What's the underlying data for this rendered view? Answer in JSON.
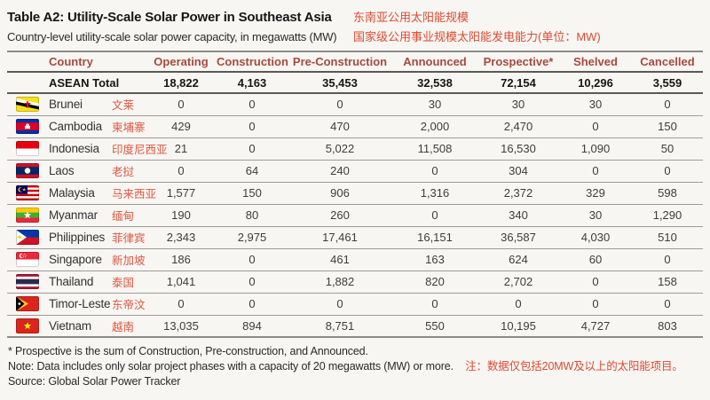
{
  "header": {
    "title_en": "Table A2: Utility-Scale Solar Power in Southeast Asia",
    "title_zh": "东南亚公用太阳能规模",
    "subtitle_en": "Country-level utility-scale solar power capacity, in megawatts (MW)",
    "subtitle_zh": "国家级公用事业规模太阳能发电能力(单位：MW)"
  },
  "table": {
    "columns": [
      "Country",
      "Operating",
      "Construction",
      "Pre-Construction",
      "Announced",
      "Prospective*",
      "Shelved",
      "Cancelled"
    ],
    "column_keys": [
      "operating",
      "construction",
      "pre-construction",
      "announced",
      "prospective",
      "shelved",
      "cancelled"
    ],
    "total_row": {
      "label": "ASEAN Total",
      "values": [
        "18,822",
        "4,163",
        "35,453",
        "32,538",
        "72,154",
        "10,296",
        "3,559"
      ]
    },
    "rows": [
      {
        "flag": "bn",
        "name": "Brunei",
        "name_zh": "文莱",
        "values": [
          "0",
          "0",
          "0",
          "30",
          "30",
          "30",
          "0"
        ]
      },
      {
        "flag": "kh",
        "name": "Cambodia",
        "name_zh": "柬埔寨",
        "values": [
          "429",
          "0",
          "470",
          "2,000",
          "2,470",
          "0",
          "150"
        ]
      },
      {
        "flag": "id",
        "name": "Indonesia",
        "name_zh": "印度尼西亚",
        "values": [
          "21",
          "0",
          "5,022",
          "11,508",
          "16,530",
          "1,090",
          "50"
        ]
      },
      {
        "flag": "la",
        "name": "Laos",
        "name_zh": "老挝",
        "values": [
          "0",
          "64",
          "240",
          "0",
          "304",
          "0",
          "0"
        ]
      },
      {
        "flag": "my",
        "name": "Malaysia",
        "name_zh": "马来西亚",
        "values": [
          "1,577",
          "150",
          "906",
          "1,316",
          "2,372",
          "329",
          "598"
        ]
      },
      {
        "flag": "mm",
        "name": "Myanmar",
        "name_zh": "缅甸",
        "values": [
          "190",
          "80",
          "260",
          "0",
          "340",
          "30",
          "1,290"
        ]
      },
      {
        "flag": "ph",
        "name": "Philippines",
        "name_zh": "菲律宾",
        "values": [
          "2,343",
          "2,975",
          "17,461",
          "16,151",
          "36,587",
          "4,030",
          "510"
        ]
      },
      {
        "flag": "sg",
        "name": "Singapore",
        "name_zh": "新加坡",
        "values": [
          "186",
          "0",
          "461",
          "163",
          "624",
          "60",
          "0"
        ]
      },
      {
        "flag": "th",
        "name": "Thailand",
        "name_zh": "泰国",
        "values": [
          "1,041",
          "0",
          "1,882",
          "820",
          "2,702",
          "0",
          "158"
        ]
      },
      {
        "flag": "tl",
        "name": "Timor-Leste",
        "name_zh": "东帝汶",
        "values": [
          "0",
          "0",
          "0",
          "0",
          "0",
          "0",
          "0"
        ]
      },
      {
        "flag": "vn",
        "name": "Vietnam",
        "name_zh": "越南",
        "values": [
          "13,035",
          "894",
          "8,751",
          "550",
          "10,195",
          "4,727",
          "803"
        ]
      }
    ]
  },
  "footnotes": {
    "prospective_note": "* Prospective is the sum of Construction, Pre-construction, and Announced.",
    "data_note_en": "Note: Data includes only solar project phases with a capacity of 20 megawatts (MW) or more.",
    "data_note_zh": "注：数据仅包括20MW及以上的太阳能项目。",
    "source": "Source: Global Solar Power Tracker"
  },
  "colors": {
    "header_red": "#a8493b",
    "chinese_red": "#de4a30",
    "country_zh_red": "#dd5840",
    "text_dark": "#161616",
    "background": "#f7f6f3"
  }
}
